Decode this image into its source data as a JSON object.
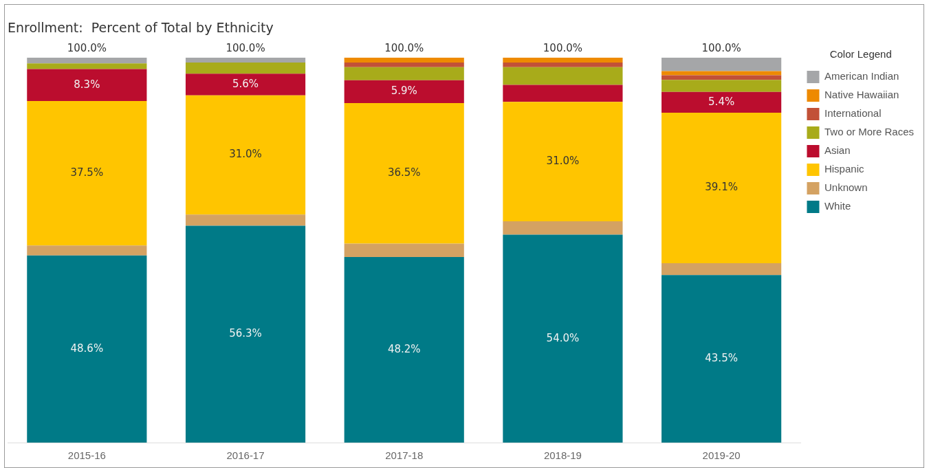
{
  "chart_data": {
    "type": "bar",
    "title": "Enrollment:  Percent of Total by Ethnicity",
    "stacked": true,
    "legend": "right",
    "legend_title": "Color Legend",
    "tick_labels": "x",
    "ylim": [
      0,
      100
    ],
    "categories": [
      "2015-16",
      "2016-17",
      "2017-18",
      "2018-19",
      "2019-20"
    ],
    "series": [
      {
        "name": "White",
        "color": "#007a87",
        "values": [
          48.6,
          56.3,
          48.2,
          54.0,
          43.5
        ],
        "value_labels": [
          "48.6%",
          "56.3%",
          "48.2%",
          "54.0%",
          "43.5%"
        ]
      },
      {
        "name": "Unknown",
        "color": "#d4a262",
        "values": [
          2.6,
          2.9,
          3.5,
          3.5,
          3.1
        ]
      },
      {
        "name": "Hispanic",
        "color": "#ffc500",
        "values": [
          37.5,
          31.0,
          36.5,
          31.0,
          39.1
        ],
        "value_labels": [
          "37.5%",
          "31.0%",
          "36.5%",
          "31.0%",
          "39.1%"
        ]
      },
      {
        "name": "Asian",
        "color": "#bb0d2e",
        "values": [
          8.3,
          5.6,
          5.9,
          4.4,
          5.4
        ],
        "value_labels": [
          "8.3%",
          "5.6%",
          "5.9%",
          null,
          "5.4%"
        ]
      },
      {
        "name": "Two or More Races",
        "color": "#a8ab1a",
        "values": [
          1.5,
          2.9,
          3.4,
          4.6,
          3.1
        ]
      },
      {
        "name": "International",
        "color": "#c25137",
        "values": [
          0,
          0,
          1.2,
          1.2,
          1.2
        ]
      },
      {
        "name": "Native Hawaiian",
        "color": "#ee8a00",
        "values": [
          0,
          0,
          1.3,
          1.3,
          1.1
        ]
      },
      {
        "name": "American Indian",
        "color": "#a5a6a8",
        "values": [
          1.5,
          1.3,
          0,
          0,
          3.5
        ]
      }
    ],
    "totals": [
      "100.0%",
      "100.0%",
      "100.0%",
      "100.0%",
      "100.0%"
    ]
  }
}
